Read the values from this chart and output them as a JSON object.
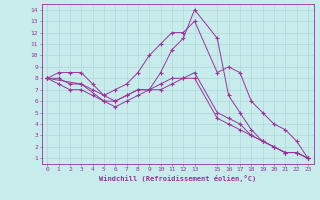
{
  "xlabel": "Windchill (Refroidissement éolien,°C)",
  "bg_color": "#c8ecec",
  "line_color": "#993399",
  "grid_color": "#b0d8d8",
  "xlim": [
    -0.5,
    23.5
  ],
  "ylim": [
    0.5,
    14.5
  ],
  "xticks": [
    0,
    1,
    2,
    3,
    4,
    5,
    6,
    7,
    8,
    9,
    10,
    11,
    12,
    13,
    15,
    16,
    17,
    18,
    19,
    20,
    21,
    22,
    23
  ],
  "yticks": [
    1,
    2,
    3,
    4,
    5,
    6,
    7,
    8,
    9,
    10,
    11,
    12,
    13,
    14
  ],
  "lines": [
    {
      "x": [
        0,
        1,
        2,
        3,
        4,
        5,
        6,
        7,
        8,
        9,
        10,
        11,
        12,
        13,
        15,
        16,
        17,
        18,
        19,
        20,
        21,
        22,
        23
      ],
      "y": [
        8,
        8.5,
        8.5,
        8.5,
        7.5,
        6.5,
        7,
        7.5,
        8.5,
        10,
        11,
        12,
        12,
        13,
        8.5,
        9,
        8.5,
        6,
        5,
        4,
        3.5,
        2.5,
        1
      ]
    },
    {
      "x": [
        0,
        1,
        2,
        3,
        4,
        5,
        6,
        7,
        8,
        9,
        10,
        11,
        12,
        13,
        15,
        16,
        17,
        18,
        19,
        20,
        21,
        22,
        23
      ],
      "y": [
        8,
        8,
        7.5,
        7.5,
        7,
        6.5,
        6,
        6.5,
        7,
        7,
        7.5,
        8,
        8,
        8.5,
        5,
        4.5,
        4,
        3,
        2.5,
        2,
        1.5,
        1.5,
        1
      ]
    },
    {
      "x": [
        0,
        1,
        2,
        3,
        4,
        5,
        6,
        7,
        8,
        9,
        10,
        11,
        12,
        13,
        15,
        16,
        17,
        18,
        19,
        20,
        21,
        22,
        23
      ],
      "y": [
        8,
        7.5,
        7,
        7,
        6.5,
        6,
        6,
        6.5,
        7,
        7,
        7,
        7.5,
        8,
        8,
        4.5,
        4,
        3.5,
        3,
        2.5,
        2,
        1.5,
        1.5,
        1
      ]
    },
    {
      "x": [
        0,
        3,
        5,
        6,
        7,
        8,
        9,
        10,
        11,
        12,
        13,
        15,
        16,
        17,
        18,
        19,
        20,
        21,
        22,
        23
      ],
      "y": [
        8,
        7.5,
        6,
        5.5,
        6,
        6.5,
        7,
        8.5,
        10.5,
        11.5,
        14,
        11.5,
        6.5,
        5,
        3.5,
        2.5,
        2,
        1.5,
        1.5,
        1
      ]
    }
  ]
}
